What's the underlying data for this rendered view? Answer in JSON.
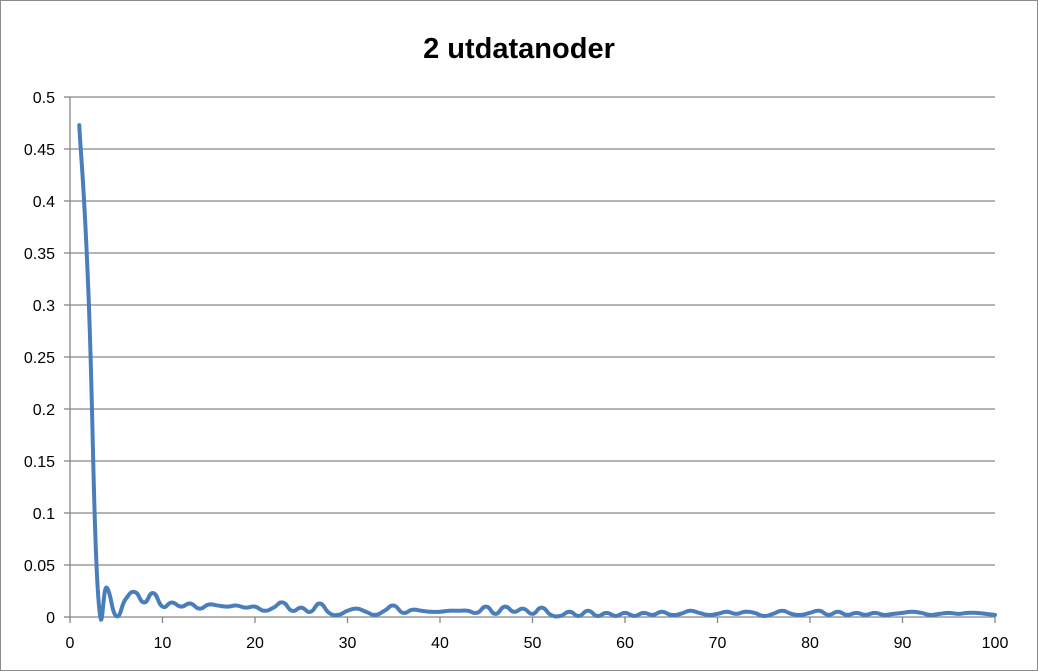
{
  "chart_data": {
    "type": "line",
    "title": "2 utdatanoder",
    "xlabel": "",
    "ylabel": "",
    "xlim": [
      0,
      100
    ],
    "ylim": [
      0,
      0.5
    ],
    "x_ticks": [
      "0",
      "10",
      "20",
      "30",
      "40",
      "50",
      "60",
      "70",
      "80",
      "90",
      "100"
    ],
    "y_ticks": [
      "0",
      "0.05",
      "0.1",
      "0.15",
      "0.2",
      "0.25",
      "0.3",
      "0.35",
      "0.4",
      "0.45",
      "0.5"
    ],
    "grid": "horizontal",
    "legend": "none",
    "series_color": "#4a7ebb",
    "series": [
      {
        "x": [
          1,
          2,
          3,
          4,
          5,
          6,
          7,
          8,
          9,
          10,
          11,
          12,
          13,
          14,
          15,
          16,
          17,
          18,
          19,
          20,
          21,
          22,
          23,
          24,
          25,
          26,
          27,
          28,
          29,
          30,
          31,
          32,
          33,
          34,
          35,
          36,
          37,
          38,
          39,
          40,
          41,
          42,
          43,
          44,
          45,
          46,
          47,
          48,
          49,
          50,
          51,
          52,
          53,
          54,
          55,
          56,
          57,
          58,
          59,
          60,
          61,
          62,
          63,
          64,
          65,
          66,
          67,
          68,
          69,
          70,
          71,
          72,
          73,
          74,
          75,
          76,
          77,
          78,
          79,
          80,
          81,
          82,
          83,
          84,
          85,
          86,
          87,
          88,
          89,
          90,
          91,
          92,
          93,
          94,
          95,
          96,
          97,
          98,
          99,
          100
        ],
        "values": [
          0.473,
          0.31,
          0.027,
          0.028,
          0.001,
          0.017,
          0.024,
          0.014,
          0.023,
          0.01,
          0.014,
          0.01,
          0.013,
          0.008,
          0.012,
          0.011,
          0.01,
          0.011,
          0.009,
          0.01,
          0.006,
          0.009,
          0.014,
          0.006,
          0.009,
          0.005,
          0.013,
          0.004,
          0.002,
          0.006,
          0.008,
          0.005,
          0.002,
          0.006,
          0.011,
          0.004,
          0.007,
          0.006,
          0.005,
          0.005,
          0.006,
          0.006,
          0.006,
          0.004,
          0.01,
          0.003,
          0.01,
          0.005,
          0.008,
          0.003,
          0.009,
          0.002,
          0.001,
          0.005,
          0.001,
          0.006,
          0.001,
          0.004,
          0.001,
          0.004,
          0.001,
          0.004,
          0.002,
          0.005,
          0.002,
          0.003,
          0.006,
          0.004,
          0.002,
          0.003,
          0.005,
          0.003,
          0.005,
          0.004,
          0.001,
          0.003,
          0.006,
          0.003,
          0.002,
          0.004,
          0.006,
          0.002,
          0.005,
          0.002,
          0.004,
          0.002,
          0.004,
          0.002,
          0.003,
          0.004,
          0.005,
          0.004,
          0.002,
          0.003,
          0.004,
          0.003,
          0.004,
          0.004,
          0.003,
          0.002
        ]
      }
    ]
  }
}
